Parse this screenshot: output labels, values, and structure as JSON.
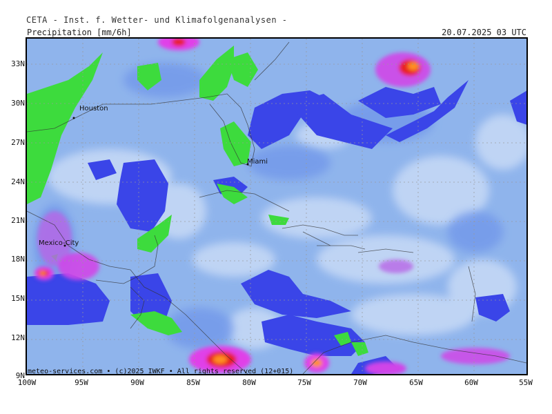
{
  "header": {
    "institute": "CETA - Inst. f. Wetter- und Klimafolgenanalysen -",
    "parameter": "Precipitation [mm/6h]",
    "valid_time": "20.07.2025 03 UTC"
  },
  "map": {
    "lat_labels": [
      "33N",
      "30N",
      "27N",
      "24N",
      "21N",
      "18N",
      "15N",
      "12N",
      "9N"
    ],
    "lon_labels": [
      "100W",
      "95W",
      "90W",
      "85W",
      "80W",
      "75W",
      "70W",
      "65W",
      "60W",
      "55W"
    ],
    "cities": {
      "houston": "Houston",
      "miami": "Miami",
      "mexico_city": "Mexico-City"
    },
    "colors": {
      "ocean_base": "#8fb4ec",
      "light_precip": "#c8daf6",
      "moderate_precip": "#5b7ee8",
      "heavy_precip": "#3a45e8",
      "green_band": "#3ddb3d",
      "magenta": "#e040e8",
      "red": "#e82020",
      "orange": "#ff9020"
    }
  },
  "footer": {
    "copyright": "meteo-services.com • (c)2025 IWKF • All rights reserved (12+015)"
  }
}
